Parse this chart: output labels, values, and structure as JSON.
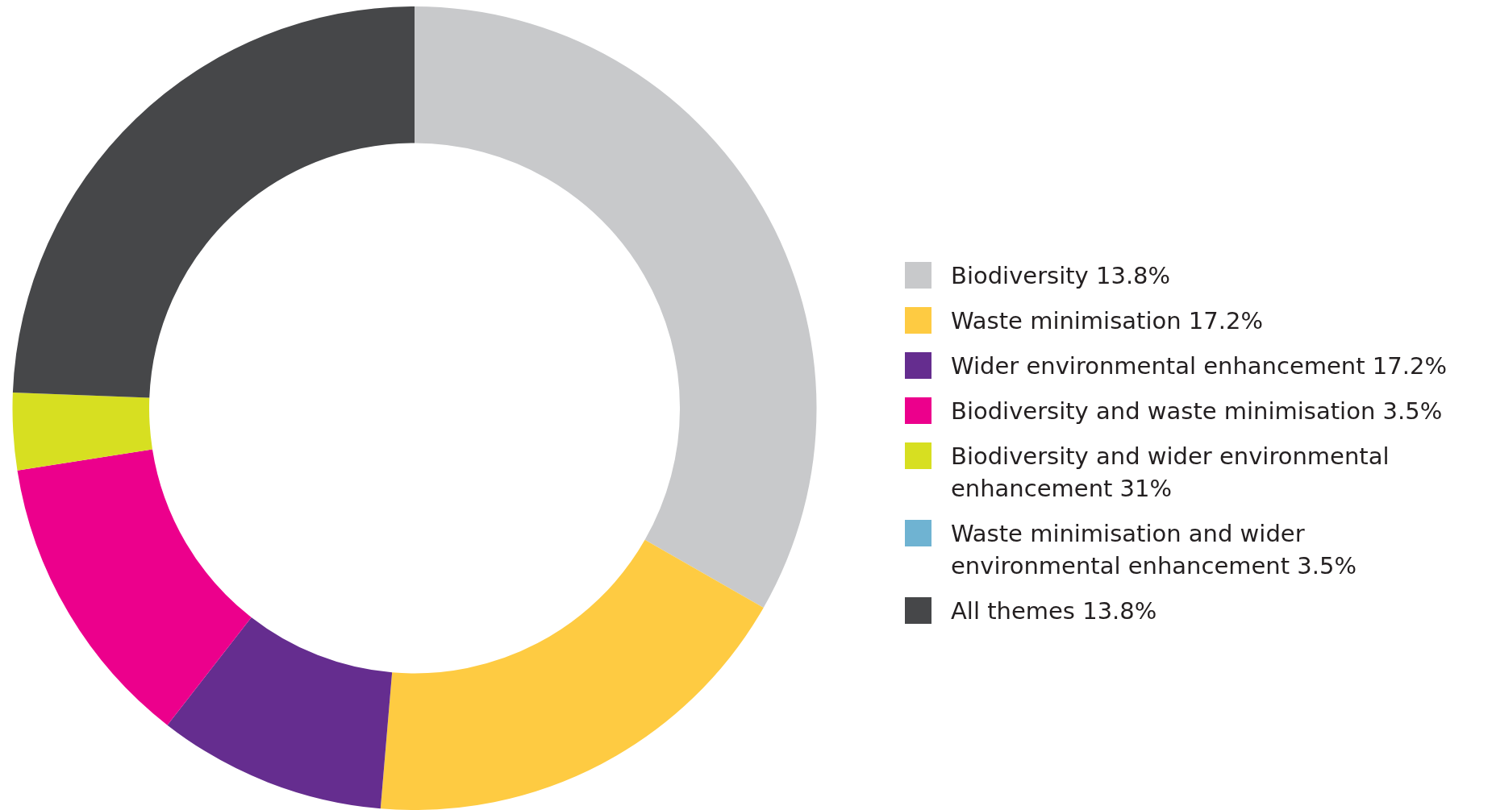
{
  "chart_data": {
    "type": "donut",
    "categories": [
      "Biodiversity 13.8%",
      "Waste minimisation 17.2%",
      "Wider environmental enhancement 17.2%",
      "Biodiversity and waste minimisation 3.5%",
      "Biodiversity and wider environmental enhancement 31%",
      "Waste minimisation and wider environmental enhancement 3.5%",
      "All themes 13.8%"
    ],
    "values": [
      33.3,
      18.1,
      9.2,
      12.0,
      3.1,
      0,
      24.4
    ],
    "colors": [
      "#c8c9cb",
      "#fecb42",
      "#652d8f",
      "#ec008c",
      "#d7df21",
      "#6fb3d2",
      "#464749"
    ],
    "legend": "right"
  }
}
